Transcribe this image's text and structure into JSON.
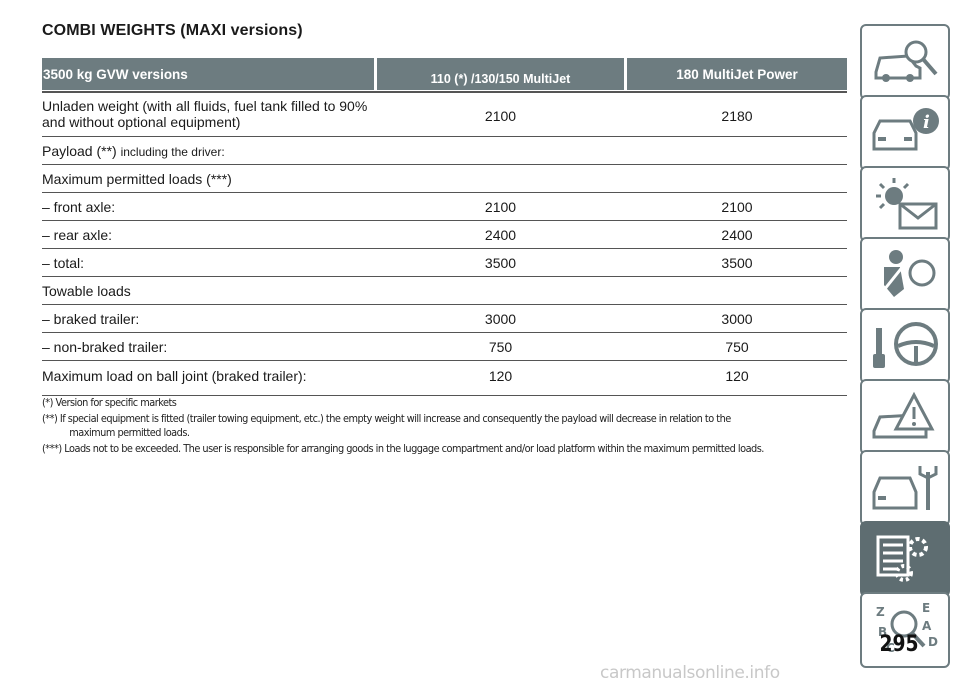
{
  "title": "COMBI WEIGHTS (MAXI versions)",
  "table": {
    "headers": [
      "3500 kg GVW versions",
      "110 (*) /130/150 MultiJet",
      "180 MultiJet Power"
    ],
    "rows": [
      {
        "label": "Unladen weight (with all fluids, fuel tank filled to 90% and without optional equipment)",
        "v1": "2100",
        "v2": "2180"
      },
      {
        "label": "Payload (**)",
        "label_small": "including the driver:",
        "v1": "",
        "v2": ""
      },
      {
        "label": "Maximum permitted loads (***)",
        "v1": "",
        "v2": ""
      },
      {
        "label": "– front axle:",
        "v1": "2100",
        "v2": "2100"
      },
      {
        "label": "– rear axle:",
        "v1": "2400",
        "v2": "2400"
      },
      {
        "label": "– total:",
        "v1": "3500",
        "v2": "3500"
      },
      {
        "label": "Towable loads",
        "v1": "",
        "v2": ""
      },
      {
        "label": "– braked trailer:",
        "v1": "3000",
        "v2": "3000"
      },
      {
        "label": "– non-braked trailer:",
        "v1": "750",
        "v2": "750"
      },
      {
        "label": "Maximum load on ball joint (braked trailer):",
        "v1": "120",
        "v2": "120"
      }
    ]
  },
  "notes": [
    "(*) Version for specific markets",
    "(**) If special equipment is fitted (trailer towing equipment, etc.) the empty weight will increase and consequently the payload will decrease in relation to the",
    "maximum permitted loads.",
    "(***) Loads not to be exceeded. The user is responsible for arranging goods in the luggage compartment and/or load platform within the maximum permitted loads."
  ],
  "side_tabs": [
    {
      "icon": "car-search-icon"
    },
    {
      "icon": "car-info-icon"
    },
    {
      "icon": "warning-light-envelope-icon"
    },
    {
      "icon": "seat-airbag-icon"
    },
    {
      "icon": "steering-key-icon"
    },
    {
      "icon": "car-warning-icon"
    },
    {
      "icon": "car-wrench-icon"
    },
    {
      "icon": "technical-data-icon",
      "active": true
    },
    {
      "icon": "alphabetical-index-icon"
    }
  ],
  "page_number": "295",
  "watermark": "carmanualsonline.info",
  "colors": {
    "header_bg": "#6d7c80",
    "tab_border": "#6d7c80",
    "tab_active": "#5e6d71"
  }
}
